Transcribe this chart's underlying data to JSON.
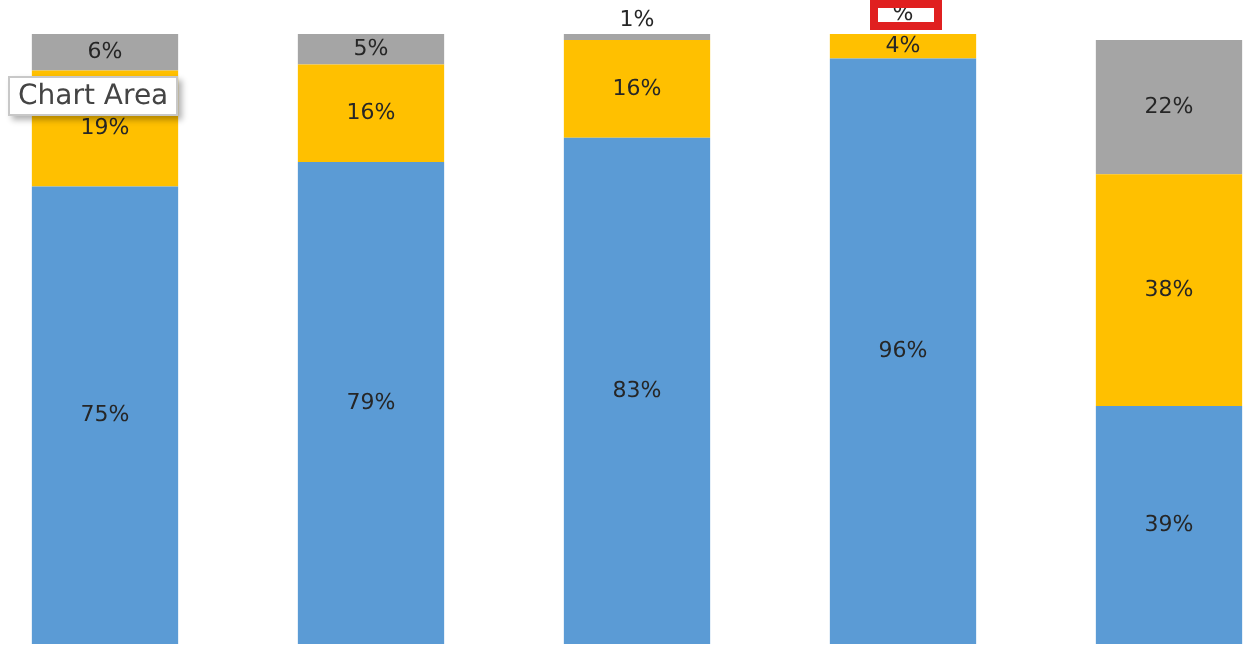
{
  "chart_data": {
    "type": "bar",
    "stacked": true,
    "tick_labels": false,
    "ylim": [
      0,
      100
    ],
    "categories": [
      null,
      null,
      null,
      null,
      null
    ],
    "series": [
      {
        "color": "#5b9bd5",
        "values": [
          75,
          79,
          83,
          96,
          39
        ],
        "value_labels": [
          "75%",
          "79%",
          "83%",
          "96%",
          "39%"
        ]
      },
      {
        "color": "#ffc000",
        "values": [
          19,
          16,
          16,
          4,
          38
        ],
        "value_labels": [
          "19%",
          "16%",
          "16%",
          "4%",
          "38%"
        ]
      },
      {
        "color": "#a5a5a5",
        "values": [
          6,
          5,
          1,
          null,
          22
        ],
        "value_labels": [
          "6%",
          "5%",
          "1%",
          "%",
          "22%"
        ]
      }
    ],
    "annotations": [
      "Chart Area"
    ]
  }
}
